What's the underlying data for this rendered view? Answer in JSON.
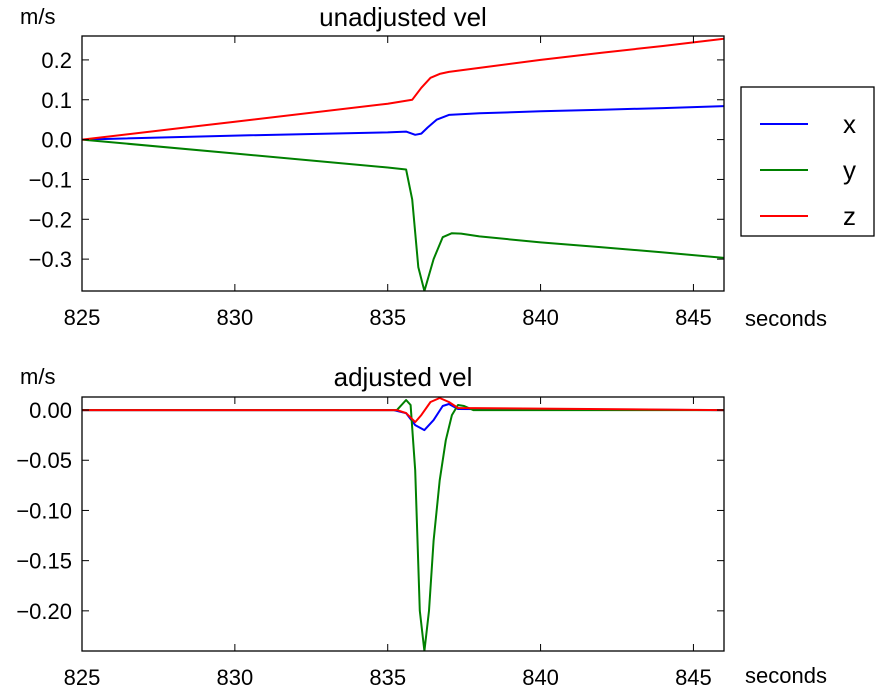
{
  "chart_data": [
    {
      "type": "line",
      "title": "unadjusted vel",
      "ylabel": "m/s",
      "xlabel": "seconds",
      "xlim": [
        825,
        846
      ],
      "ylim": [
        -0.38,
        0.26
      ],
      "xticks": [
        825,
        830,
        835,
        840,
        845
      ],
      "xtick_labels": [
        "825",
        "830",
        "835",
        "840",
        "845"
      ],
      "yticks": [
        0.2,
        0.1,
        0.0,
        -0.1,
        -0.2,
        -0.3
      ],
      "ytick_labels": [
        "0.2",
        "0.1",
        "0.0",
        "−0.1",
        "−0.2",
        "−0.3"
      ],
      "grid": false,
      "legend": {
        "placement": "outside-right"
      },
      "series": [
        {
          "name": "x",
          "color": "#0000ff",
          "x": [
            825,
            830,
            835,
            835.6,
            835.9,
            836.1,
            836.3,
            836.6,
            837,
            838,
            840,
            842,
            844,
            846
          ],
          "y": [
            0.0,
            0.01,
            0.018,
            0.02,
            0.012,
            0.015,
            0.03,
            0.05,
            0.062,
            0.066,
            0.071,
            0.075,
            0.079,
            0.084
          ]
        },
        {
          "name": "y",
          "color": "#008000",
          "x": [
            825,
            830,
            835,
            835.6,
            835.8,
            836.0,
            836.2,
            836.5,
            836.8,
            837.1,
            837.4,
            838,
            840,
            842,
            844,
            846
          ],
          "y": [
            0.0,
            -0.035,
            -0.07,
            -0.075,
            -0.15,
            -0.32,
            -0.38,
            -0.3,
            -0.245,
            -0.235,
            -0.236,
            -0.243,
            -0.258,
            -0.27,
            -0.283,
            -0.297
          ]
        },
        {
          "name": "z",
          "color": "#ff0000",
          "x": [
            825,
            830,
            835,
            835.8,
            836.1,
            836.4,
            836.7,
            837,
            838,
            840,
            842,
            844,
            846
          ],
          "y": [
            0.0,
            0.045,
            0.09,
            0.1,
            0.13,
            0.155,
            0.165,
            0.17,
            0.18,
            0.2,
            0.218,
            0.235,
            0.253
          ]
        }
      ]
    },
    {
      "type": "line",
      "title": "adjusted vel",
      "ylabel": "m/s",
      "xlabel": "seconds",
      "xlim": [
        825,
        846
      ],
      "ylim": [
        -0.24,
        0.013
      ],
      "xticks": [
        825,
        830,
        835,
        840,
        845
      ],
      "xtick_labels": [
        "825",
        "830",
        "835",
        "840",
        "845"
      ],
      "yticks": [
        0.0,
        -0.05,
        -0.1,
        -0.15,
        -0.2
      ],
      "ytick_labels": [
        "0.00",
        "−0.05",
        "−0.10",
        "−0.15",
        "−0.20"
      ],
      "grid": false,
      "series": [
        {
          "name": "x",
          "color": "#0000ff",
          "x": [
            825,
            835.2,
            835.6,
            835.9,
            836.2,
            836.5,
            836.8,
            837.0,
            837.3,
            846
          ],
          "y": [
            0.0,
            0.0,
            -0.003,
            -0.015,
            -0.02,
            -0.01,
            0.004,
            0.006,
            0.001,
            0.0
          ]
        },
        {
          "name": "y",
          "color": "#008000",
          "x": [
            825,
            835.3,
            835.6,
            835.75,
            835.9,
            836.05,
            836.2,
            836.35,
            836.5,
            836.7,
            836.9,
            837.1,
            837.3,
            837.5,
            837.8,
            846
          ],
          "y": [
            0.0,
            0.0,
            0.01,
            0.005,
            -0.06,
            -0.2,
            -0.24,
            -0.2,
            -0.13,
            -0.07,
            -0.03,
            -0.005,
            0.005,
            0.004,
            0.0,
            0.0
          ]
        },
        {
          "name": "z",
          "color": "#ff0000",
          "x": [
            825,
            835.3,
            835.6,
            835.9,
            836.1,
            836.4,
            836.7,
            837.0,
            837.3,
            846
          ],
          "y": [
            0.0,
            0.0,
            -0.003,
            -0.012,
            -0.005,
            0.008,
            0.012,
            0.008,
            0.002,
            0.0
          ]
        }
      ]
    }
  ]
}
